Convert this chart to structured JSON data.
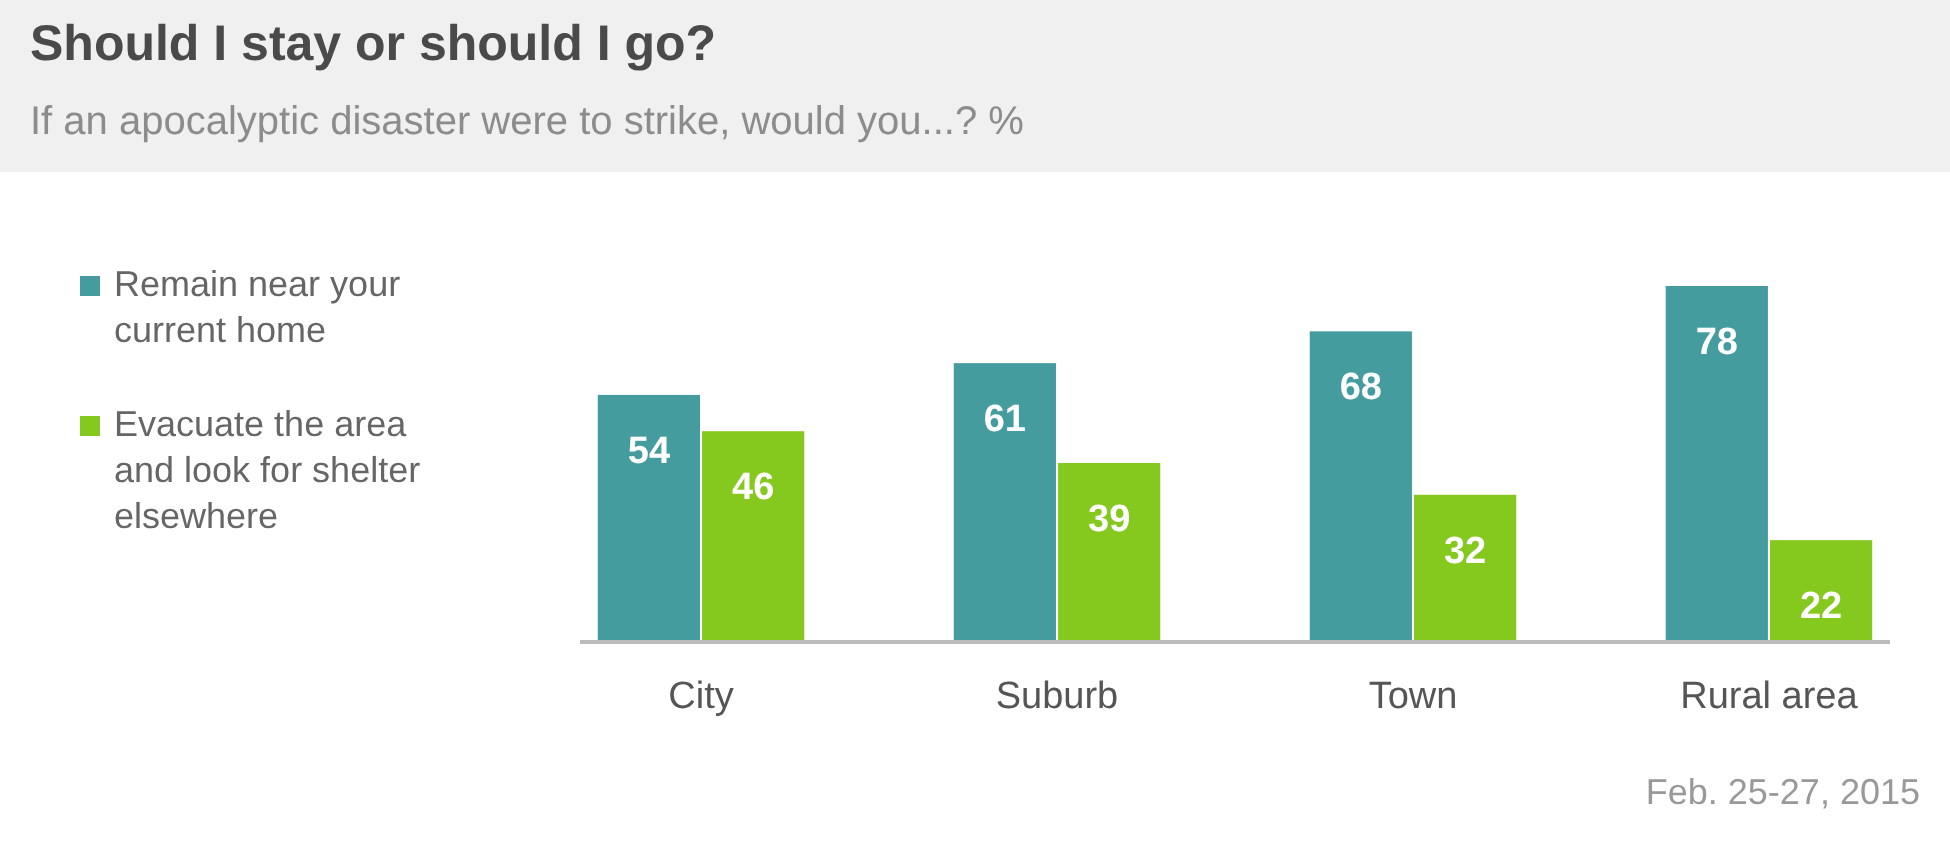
{
  "chart_data": {
    "type": "bar",
    "title": "Should I stay or should I go?",
    "subtitle": "If an apocalyptic disaster were to strike, would you...? %",
    "categories": [
      "City",
      "Suburb",
      "Town",
      "Rural area"
    ],
    "series": [
      {
        "name": "Remain near your current home",
        "color": "#459c9f",
        "values": [
          54,
          61,
          68,
          78
        ]
      },
      {
        "name": "Evacuate the area and look for shelter elsewhere",
        "color": "#85c81e",
        "values": [
          46,
          39,
          32,
          22
        ]
      }
    ],
    "data_labels": true,
    "legend": "left",
    "annotations": [
      "Feb. 25-27, 2015"
    ]
  }
}
